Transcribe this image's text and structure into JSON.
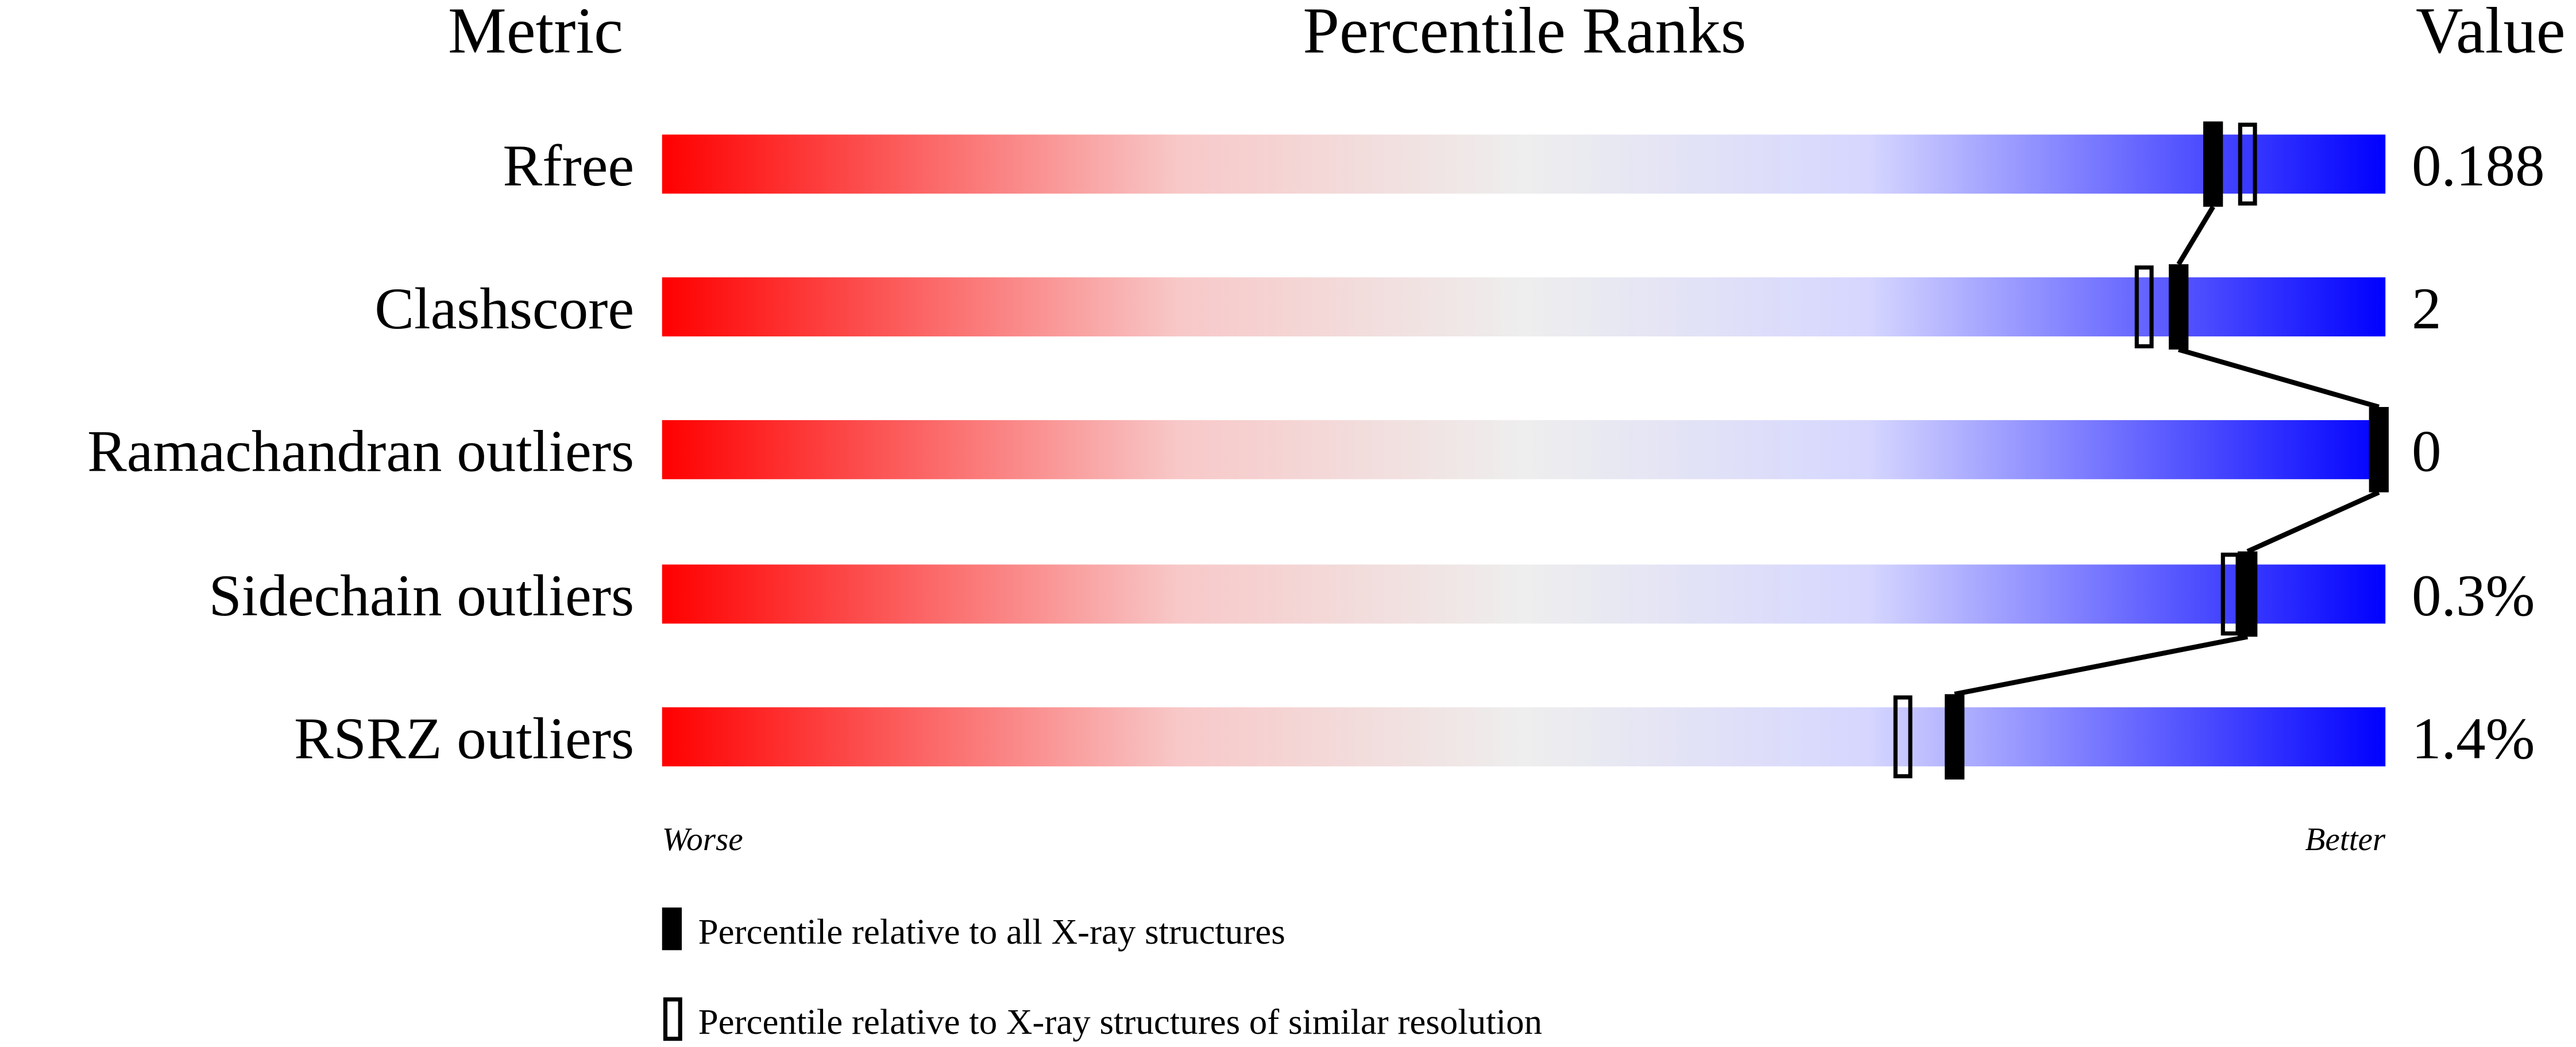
{
  "chart_data": {
    "type": "percentile-bar",
    "headers": {
      "metric": "Metric",
      "ranks": "Percentile Ranks",
      "value": "Value"
    },
    "xlim": [
      0,
      100
    ],
    "axis_labels": {
      "low": "Worse",
      "high": "Better"
    },
    "gradient_colors": [
      "#ff0000",
      "#f8c8c8",
      "#eeeeee",
      "#d6d6ff",
      "#0000ff"
    ],
    "rows": [
      {
        "metric": "Rfree",
        "value": "0.188",
        "percentile_all": 90,
        "percentile_similar": 92
      },
      {
        "metric": "Clashscore",
        "value": "2",
        "percentile_all": 88,
        "percentile_similar": 86
      },
      {
        "metric": "Ramachandran outliers",
        "value": "0",
        "percentile_all": 100,
        "percentile_similar": 100
      },
      {
        "metric": "Sidechain outliers",
        "value": "0.3%",
        "percentile_all": 92,
        "percentile_similar": 91
      },
      {
        "metric": "RSRZ outliers",
        "value": "1.4%",
        "percentile_all": 75,
        "percentile_similar": 72
      }
    ],
    "legend": [
      {
        "marker": "filled",
        "label": "Percentile relative to all X-ray structures"
      },
      {
        "marker": "open",
        "label": "Percentile relative to X-ray structures of similar resolution"
      }
    ]
  }
}
